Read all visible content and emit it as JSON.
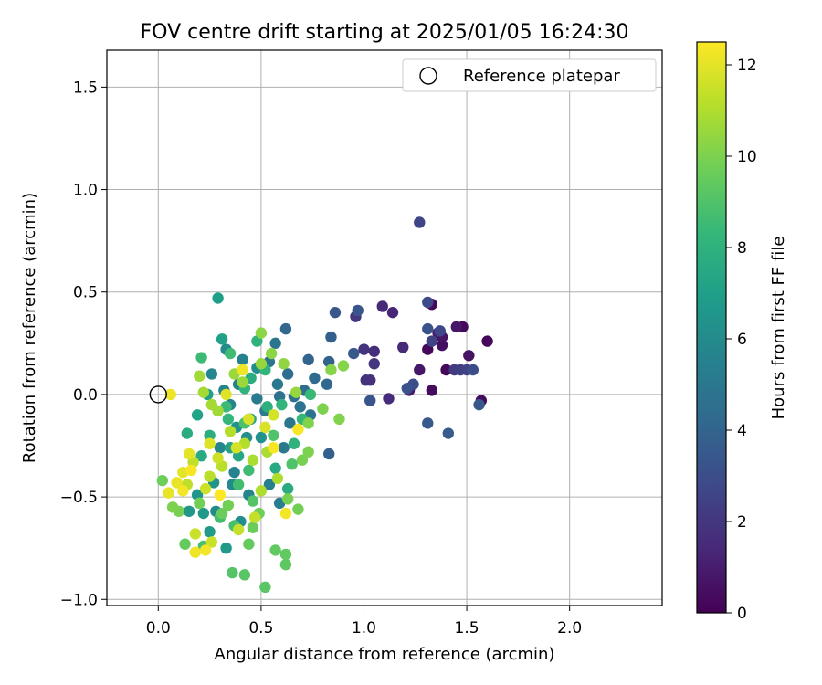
{
  "chart_data": {
    "type": "scatter",
    "title": "FOV centre drift starting at 2025/01/05 16:24:30",
    "xlabel": "Angular distance from reference (arcmin)",
    "ylabel": "Rotation from reference (arcmin)",
    "xlim": [
      -0.25,
      2.45
    ],
    "ylim": [
      -1.03,
      1.68
    ],
    "xticks": [
      0.0,
      0.5,
      1.0,
      1.5,
      2.0
    ],
    "xtick_labels": [
      "0.0",
      "0.5",
      "1.0",
      "1.5",
      "2.0"
    ],
    "yticks": [
      -1.0,
      -0.5,
      0.0,
      0.5,
      1.0,
      1.5
    ],
    "ytick_labels": [
      "−1.0",
      "−0.5",
      "0.0",
      "0.5",
      "1.0",
      "1.5"
    ],
    "grid": true,
    "legend": {
      "position": "top-right",
      "entries": [
        "Reference platepar"
      ]
    },
    "reference_point": {
      "x": 0.0,
      "y": 0.0,
      "label": "Reference platepar"
    },
    "colorbar": {
      "label": "Hours from first FF file",
      "range": [
        0,
        12.5
      ],
      "ticks": [
        0,
        2,
        4,
        6,
        8,
        10,
        12
      ],
      "tick_labels": [
        "0",
        "2",
        "4",
        "6",
        "8",
        "10",
        "12"
      ],
      "colormap": "viridis",
      "colors": [
        "#440154",
        "#482878",
        "#3e4989",
        "#31688e",
        "#26828e",
        "#1f9e89",
        "#35b779",
        "#6ece58",
        "#b5de2b",
        "#fde725"
      ]
    },
    "points": [
      {
        "x": 1.33,
        "y": 0.44,
        "h": 0.2
      },
      {
        "x": 1.48,
        "y": 0.33,
        "h": 0.3
      },
      {
        "x": 1.6,
        "y": 0.26,
        "h": 0.2
      },
      {
        "x": 1.31,
        "y": 0.22,
        "h": 0.2
      },
      {
        "x": 1.38,
        "y": 0.24,
        "h": 0.5
      },
      {
        "x": 1.4,
        "y": 0.12,
        "h": 0.3
      },
      {
        "x": 1.33,
        "y": 0.02,
        "h": 0.4
      },
      {
        "x": 1.51,
        "y": 0.19,
        "h": 0.6
      },
      {
        "x": 1.57,
        "y": -0.03,
        "h": 0.4
      },
      {
        "x": 1.27,
        "y": 0.12,
        "h": 0.8
      },
      {
        "x": 1.45,
        "y": 0.33,
        "h": 0.8
      },
      {
        "x": 1.36,
        "y": 0.3,
        "h": 1.0
      },
      {
        "x": 1.38,
        "y": 0.28,
        "h": 0.7
      },
      {
        "x": 1.22,
        "y": 0.02,
        "h": 0.9
      },
      {
        "x": 1.09,
        "y": 0.43,
        "h": 1.5
      },
      {
        "x": 1.14,
        "y": 0.4,
        "h": 1.3
      },
      {
        "x": 1.05,
        "y": 0.21,
        "h": 1.6
      },
      {
        "x": 1.19,
        "y": 0.23,
        "h": 1.5
      },
      {
        "x": 1.03,
        "y": 0.07,
        "h": 1.7
      },
      {
        "x": 1.01,
        "y": 0.07,
        "h": 1.8
      },
      {
        "x": 1.12,
        "y": -0.02,
        "h": 1.6
      },
      {
        "x": 1.0,
        "y": 0.22,
        "h": 1.9
      },
      {
        "x": 1.05,
        "y": 0.15,
        "h": 2.0
      },
      {
        "x": 1.44,
        "y": 0.12,
        "h": 2.1
      },
      {
        "x": 1.47,
        "y": 0.12,
        "h": 2.3
      },
      {
        "x": 1.5,
        "y": 0.12,
        "h": 2.5
      },
      {
        "x": 0.96,
        "y": 0.38,
        "h": 2.0
      },
      {
        "x": 1.27,
        "y": 0.84,
        "h": 2.6
      },
      {
        "x": 1.31,
        "y": 0.45,
        "h": 2.8
      },
      {
        "x": 1.33,
        "y": 0.26,
        "h": 2.5
      },
      {
        "x": 1.37,
        "y": 0.31,
        "h": 2.7
      },
      {
        "x": 1.53,
        "y": 0.12,
        "h": 3.0
      },
      {
        "x": 1.31,
        "y": 0.32,
        "h": 3.2
      },
      {
        "x": 1.24,
        "y": 0.05,
        "h": 3.0
      },
      {
        "x": 1.21,
        "y": 0.03,
        "h": 3.2
      },
      {
        "x": 0.97,
        "y": 0.41,
        "h": 3.3
      },
      {
        "x": 0.86,
        "y": 0.4,
        "h": 3.4
      },
      {
        "x": 0.95,
        "y": 0.2,
        "h": 3.5
      },
      {
        "x": 1.03,
        "y": -0.03,
        "h": 3.3
      },
      {
        "x": 1.31,
        "y": -0.14,
        "h": 3.5
      },
      {
        "x": 1.41,
        "y": -0.19,
        "h": 3.6
      },
      {
        "x": 1.56,
        "y": -0.05,
        "h": 3.4
      },
      {
        "x": 0.83,
        "y": -0.29,
        "h": 3.8
      },
      {
        "x": 0.84,
        "y": 0.28,
        "h": 3.8
      },
      {
        "x": 0.83,
        "y": 0.16,
        "h": 3.9
      },
      {
        "x": 0.73,
        "y": 0.17,
        "h": 4.0
      },
      {
        "x": 0.62,
        "y": 0.32,
        "h": 4.1
      },
      {
        "x": 0.82,
        "y": 0.05,
        "h": 4.2
      },
      {
        "x": 0.76,
        "y": 0.08,
        "h": 4.3
      },
      {
        "x": 0.71,
        "y": 0.02,
        "h": 4.4
      },
      {
        "x": 0.66,
        "y": -0.01,
        "h": 4.6
      },
      {
        "x": 0.63,
        "y": 0.1,
        "h": 4.5
      },
      {
        "x": 0.69,
        "y": -0.06,
        "h": 4.7
      },
      {
        "x": 0.59,
        "y": -0.01,
        "h": 4.7
      },
      {
        "x": 0.74,
        "y": -0.1,
        "h": 4.8
      },
      {
        "x": 0.57,
        "y": 0.25,
        "h": 4.9
      },
      {
        "x": 0.54,
        "y": 0.16,
        "h": 4.8
      },
      {
        "x": 0.58,
        "y": 0.05,
        "h": 5.0
      },
      {
        "x": 0.64,
        "y": -0.14,
        "h": 5.0
      },
      {
        "x": 0.52,
        "y": -0.08,
        "h": 5.1
      },
      {
        "x": 0.48,
        "y": -0.02,
        "h": 5.2
      },
      {
        "x": 0.61,
        "y": -0.26,
        "h": 5.1
      },
      {
        "x": 0.54,
        "y": -0.44,
        "h": 5.3
      },
      {
        "x": 0.59,
        "y": -0.53,
        "h": 5.3
      },
      {
        "x": 0.44,
        "y": -0.12,
        "h": 5.4
      },
      {
        "x": 0.39,
        "y": 0.05,
        "h": 5.5
      },
      {
        "x": 0.41,
        "y": 0.17,
        "h": 5.5
      },
      {
        "x": 0.35,
        "y": -0.05,
        "h": 5.6
      },
      {
        "x": 0.32,
        "y": 0.02,
        "h": 5.7
      },
      {
        "x": 0.37,
        "y": -0.38,
        "h": 5.6
      },
      {
        "x": 0.44,
        "y": -0.49,
        "h": 5.7
      },
      {
        "x": 0.3,
        "y": -0.26,
        "h": 5.8
      },
      {
        "x": 0.26,
        "y": 0.1,
        "h": 5.8
      },
      {
        "x": 0.28,
        "y": -0.57,
        "h": 5.9
      },
      {
        "x": 0.36,
        "y": -0.44,
        "h": 5.9
      },
      {
        "x": 0.4,
        "y": -0.62,
        "h": 6.1
      },
      {
        "x": 0.33,
        "y": 0.22,
        "h": 6.0
      },
      {
        "x": 0.48,
        "y": 0.13,
        "h": 6.1
      },
      {
        "x": 0.43,
        "y": -0.21,
        "h": 6.2
      },
      {
        "x": 0.5,
        "y": -0.21,
        "h": 6.3
      },
      {
        "x": 0.38,
        "y": -0.16,
        "h": 6.4
      },
      {
        "x": 0.27,
        "y": -0.43,
        "h": 6.4
      },
      {
        "x": 0.19,
        "y": -0.49,
        "h": 6.5
      },
      {
        "x": 0.22,
        "y": -0.58,
        "h": 6.6
      },
      {
        "x": 0.15,
        "y": -0.57,
        "h": 6.6
      },
      {
        "x": 0.33,
        "y": -0.75,
        "h": 6.7
      },
      {
        "x": 0.25,
        "y": -0.67,
        "h": 6.8
      },
      {
        "x": 0.29,
        "y": 0.47,
        "h": 7.0
      },
      {
        "x": 0.31,
        "y": 0.27,
        "h": 7.1
      },
      {
        "x": 0.24,
        "y": 0.0,
        "h": 7.0
      },
      {
        "x": 0.19,
        "y": -0.1,
        "h": 7.2
      },
      {
        "x": 0.35,
        "y": -0.26,
        "h": 7.3
      },
      {
        "x": 0.45,
        "y": -0.12,
        "h": 7.3
      },
      {
        "x": 0.39,
        "y": -0.3,
        "h": 7.4
      },
      {
        "x": 0.57,
        "y": -0.36,
        "h": 7.5
      },
      {
        "x": 0.63,
        "y": -0.46,
        "h": 7.6
      },
      {
        "x": 0.21,
        "y": -0.3,
        "h": 7.6
      },
      {
        "x": 0.14,
        "y": -0.19,
        "h": 7.7
      },
      {
        "x": 0.25,
        "y": -0.2,
        "h": 7.8
      },
      {
        "x": 0.45,
        "y": 0.08,
        "h": 7.8
      },
      {
        "x": 0.53,
        "y": -0.06,
        "h": 7.9
      },
      {
        "x": 0.66,
        "y": -0.24,
        "h": 8.0
      },
      {
        "x": 0.48,
        "y": 0.26,
        "h": 8.0
      },
      {
        "x": 0.52,
        "y": 0.12,
        "h": 8.1
      },
      {
        "x": 0.42,
        "y": 0.03,
        "h": 8.1
      },
      {
        "x": 0.34,
        "y": -0.12,
        "h": 8.2
      },
      {
        "x": 0.6,
        "y": -0.05,
        "h": 8.2
      },
      {
        "x": 0.7,
        "y": -0.12,
        "h": 8.3
      },
      {
        "x": 0.74,
        "y": 0.0,
        "h": 8.4
      },
      {
        "x": 0.33,
        "y": -0.06,
        "h": 8.5
      },
      {
        "x": 0.21,
        "y": 0.18,
        "h": 8.5
      },
      {
        "x": 0.35,
        "y": 0.2,
        "h": 8.6
      },
      {
        "x": 0.44,
        "y": -0.37,
        "h": 8.6
      },
      {
        "x": 0.39,
        "y": -0.44,
        "h": 8.7
      },
      {
        "x": 0.3,
        "y": -0.6,
        "h": 8.7
      },
      {
        "x": 0.22,
        "y": -0.74,
        "h": 8.8
      },
      {
        "x": 0.37,
        "y": -0.64,
        "h": 8.8
      },
      {
        "x": 0.42,
        "y": -0.14,
        "h": 8.9
      },
      {
        "x": 0.56,
        "y": -0.2,
        "h": 9.0
      },
      {
        "x": 0.65,
        "y": -0.34,
        "h": 9.0
      },
      {
        "x": 0.46,
        "y": -0.52,
        "h": 9.1
      },
      {
        "x": 0.36,
        "y": -0.87,
        "h": 9.1
      },
      {
        "x": 0.42,
        "y": -0.88,
        "h": 9.2
      },
      {
        "x": 0.52,
        "y": -0.94,
        "h": 9.2
      },
      {
        "x": 0.62,
        "y": -0.83,
        "h": 9.3
      },
      {
        "x": 0.62,
        "y": -0.78,
        "h": 9.4
      },
      {
        "x": 0.57,
        "y": -0.76,
        "h": 9.4
      },
      {
        "x": 0.44,
        "y": -0.73,
        "h": 9.5
      },
      {
        "x": 0.13,
        "y": -0.73,
        "h": 9.5
      },
      {
        "x": 0.31,
        "y": -0.58,
        "h": 9.6
      },
      {
        "x": 0.46,
        "y": -0.65,
        "h": 9.6
      },
      {
        "x": 0.49,
        "y": -0.58,
        "h": 9.7
      },
      {
        "x": 0.34,
        "y": -0.54,
        "h": 9.8
      },
      {
        "x": 0.2,
        "y": -0.53,
        "h": 9.8
      },
      {
        "x": 0.1,
        "y": -0.57,
        "h": 9.9
      },
      {
        "x": 0.07,
        "y": -0.55,
        "h": 10.0
      },
      {
        "x": 0.02,
        "y": -0.42,
        "h": 9.7
      },
      {
        "x": 0.68,
        "y": -0.56,
        "h": 9.8
      },
      {
        "x": 0.63,
        "y": -0.51,
        "h": 9.9
      },
      {
        "x": 0.7,
        "y": -0.32,
        "h": 9.9
      },
      {
        "x": 0.73,
        "y": -0.28,
        "h": 10.0
      },
      {
        "x": 0.73,
        "y": -0.14,
        "h": 10.1
      },
      {
        "x": 0.8,
        "y": -0.07,
        "h": 10.0
      },
      {
        "x": 0.88,
        "y": -0.12,
        "h": 10.1
      },
      {
        "x": 0.84,
        "y": 0.12,
        "h": 10.2
      },
      {
        "x": 0.9,
        "y": 0.14,
        "h": 10.2
      },
      {
        "x": 0.55,
        "y": 0.2,
        "h": 10.3
      },
      {
        "x": 0.5,
        "y": 0.3,
        "h": 10.3
      },
      {
        "x": 0.61,
        "y": 0.15,
        "h": 10.4
      },
      {
        "x": 0.67,
        "y": 0.01,
        "h": 10.5
      },
      {
        "x": 0.5,
        "y": 0.15,
        "h": 10.5
      },
      {
        "x": 0.41,
        "y": 0.06,
        "h": 10.6
      },
      {
        "x": 0.37,
        "y": 0.1,
        "h": 10.6
      },
      {
        "x": 0.29,
        "y": -0.08,
        "h": 10.7
      },
      {
        "x": 0.2,
        "y": 0.09,
        "h": 10.7
      },
      {
        "x": 0.22,
        "y": 0.01,
        "h": 10.8
      },
      {
        "x": 0.26,
        "y": -0.05,
        "h": 10.8
      },
      {
        "x": 0.46,
        "y": -0.32,
        "h": 10.9
      },
      {
        "x": 0.53,
        "y": -0.28,
        "h": 10.9
      },
      {
        "x": 0.58,
        "y": -0.41,
        "h": 11.0
      },
      {
        "x": 0.5,
        "y": -0.47,
        "h": 11.0
      },
      {
        "x": 0.42,
        "y": -0.24,
        "h": 11.1
      },
      {
        "x": 0.35,
        "y": -0.18,
        "h": 11.1
      },
      {
        "x": 0.31,
        "y": -0.35,
        "h": 11.2
      },
      {
        "x": 0.25,
        "y": -0.4,
        "h": 11.2
      },
      {
        "x": 0.17,
        "y": -0.33,
        "h": 11.3
      },
      {
        "x": 0.14,
        "y": -0.44,
        "h": 11.3
      },
      {
        "x": 0.47,
        "y": -0.6,
        "h": 11.4
      },
      {
        "x": 0.39,
        "y": -0.66,
        "h": 11.4
      },
      {
        "x": 0.26,
        "y": -0.72,
        "h": 11.5
      },
      {
        "x": 0.18,
        "y": -0.68,
        "h": 11.5
      },
      {
        "x": 0.23,
        "y": -0.46,
        "h": 11.6
      },
      {
        "x": 0.29,
        "y": -0.31,
        "h": 11.6
      },
      {
        "x": 0.38,
        "y": -0.26,
        "h": 11.7
      },
      {
        "x": 0.56,
        "y": -0.1,
        "h": 11.7
      },
      {
        "x": 0.52,
        "y": -0.16,
        "h": 11.8
      },
      {
        "x": 0.44,
        "y": -0.12,
        "h": 11.8
      },
      {
        "x": 0.33,
        "y": 0.0,
        "h": 11.9
      },
      {
        "x": 0.25,
        "y": -0.24,
        "h": 11.9
      },
      {
        "x": 0.15,
        "y": -0.29,
        "h": 12.0
      },
      {
        "x": 0.12,
        "y": -0.38,
        "h": 12.0
      },
      {
        "x": 0.09,
        "y": -0.43,
        "h": 12.1
      },
      {
        "x": 0.05,
        "y": -0.48,
        "h": 12.1
      },
      {
        "x": 0.06,
        "y": 0.0,
        "h": 12.2
      },
      {
        "x": 0.18,
        "y": -0.77,
        "h": 12.2
      },
      {
        "x": 0.23,
        "y": -0.76,
        "h": 12.3
      },
      {
        "x": 0.62,
        "y": -0.58,
        "h": 12.3
      },
      {
        "x": 0.56,
        "y": -0.26,
        "h": 12.4
      },
      {
        "x": 0.68,
        "y": -0.17,
        "h": 12.4
      },
      {
        "x": 0.41,
        "y": 0.12,
        "h": 12.2
      },
      {
        "x": 0.3,
        "y": -0.49,
        "h": 12.5
      },
      {
        "x": 0.16,
        "y": -0.37,
        "h": 12.4
      },
      {
        "x": 0.12,
        "y": -0.47,
        "h": 12.3
      }
    ]
  }
}
